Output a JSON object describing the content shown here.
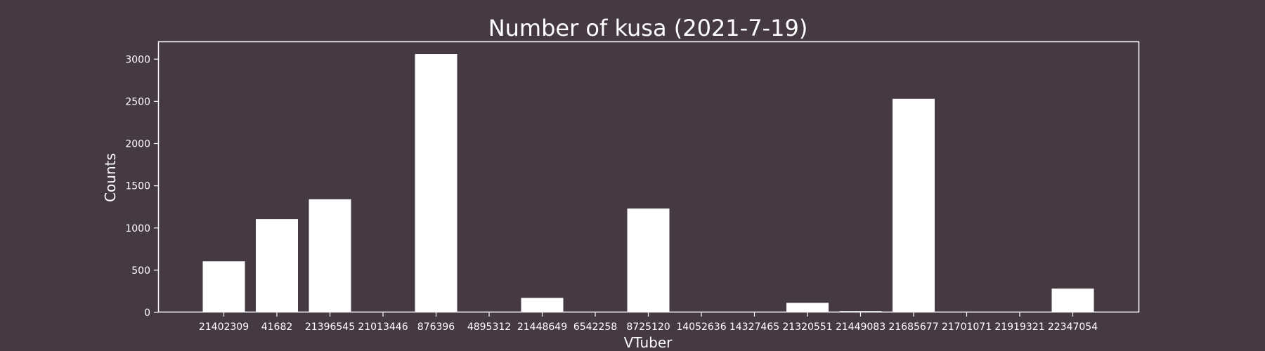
{
  "colors": {
    "background": "#453a42",
    "foreground": "#ffffff",
    "bar": "#ffffff"
  },
  "chart_data": {
    "type": "bar",
    "title": "Number of kusa (2021-7-19)",
    "xlabel": "VTuber",
    "ylabel": "Counts",
    "categories": [
      "21402309",
      "41682",
      "21396545",
      "21013446",
      "876396",
      "4895312",
      "21448649",
      "6542258",
      "8725120",
      "14052636",
      "14327465",
      "21320551",
      "21449083",
      "21685677",
      "21701071",
      "21919321",
      "22347054"
    ],
    "values": [
      605,
      1105,
      1340,
      0,
      3060,
      0,
      172,
      0,
      1230,
      0,
      0,
      113,
      15,
      2530,
      8,
      0,
      282
    ],
    "ylim": [
      0,
      3210
    ],
    "yticks": [
      0,
      500,
      1000,
      1500,
      2000,
      2500,
      3000
    ],
    "grid": false,
    "legend": "none"
  }
}
